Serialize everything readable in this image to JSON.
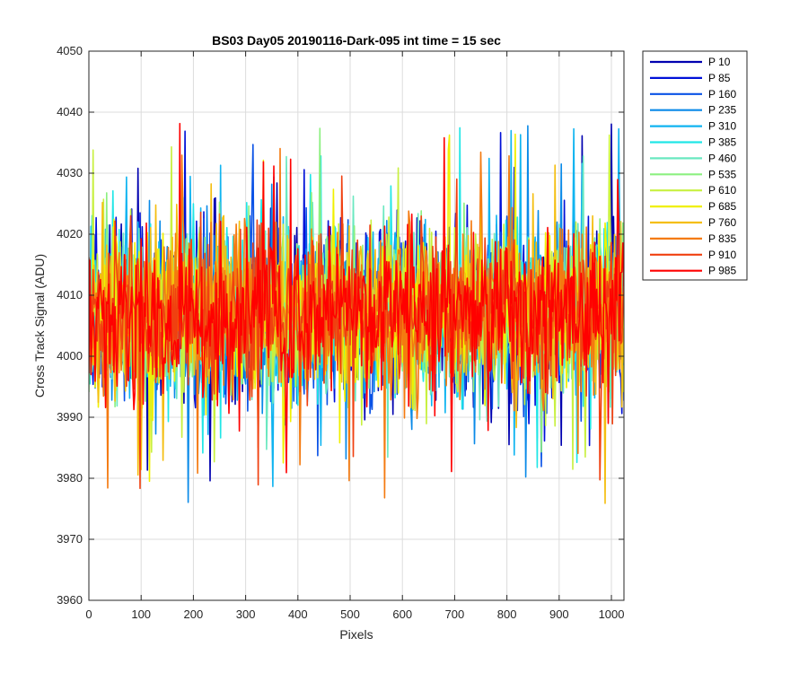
{
  "chart_data": {
    "type": "line",
    "title": "BS03 Day05 20190116-Dark-095 int time = 15 sec",
    "xlabel": "Pixels",
    "ylabel": "Cross Track Signal (ADU)",
    "xlim": [
      0,
      1024
    ],
    "ylim": [
      3960,
      4050
    ],
    "xticks": [
      0,
      100,
      200,
      300,
      400,
      500,
      600,
      700,
      800,
      900,
      1000
    ],
    "yticks": [
      3960,
      3970,
      3980,
      3990,
      4000,
      4010,
      4020,
      4030,
      4040,
      4050
    ],
    "grid": true,
    "legend_position": "outside-top-right",
    "series": [
      {
        "name": "P 10",
        "color": "#0000b0",
        "mean": 4007,
        "noise": 8
      },
      {
        "name": "P 85",
        "color": "#0010d8",
        "mean": 4007,
        "noise": 8
      },
      {
        "name": "P 160",
        "color": "#0a52e6",
        "mean": 4007,
        "noise": 8
      },
      {
        "name": "P 235",
        "color": "#0a8ae8",
        "mean": 4007,
        "noise": 8
      },
      {
        "name": "P 310",
        "color": "#10b4f0",
        "mean": 4007,
        "noise": 8
      },
      {
        "name": "P 385",
        "color": "#20e6e6",
        "mean": 4007,
        "noise": 8
      },
      {
        "name": "P 460",
        "color": "#6ae8c0",
        "mean": 4007,
        "noise": 8
      },
      {
        "name": "P 535",
        "color": "#8cf080",
        "mean": 4007,
        "noise": 8
      },
      {
        "name": "P 610",
        "color": "#c8f040",
        "mean": 4007,
        "noise": 8
      },
      {
        "name": "P 685",
        "color": "#f0f000",
        "mean": 4007,
        "noise": 8
      },
      {
        "name": "P 760",
        "color": "#f4be10",
        "mean": 4007,
        "noise": 8
      },
      {
        "name": "P 835",
        "color": "#f47a10",
        "mean": 4007,
        "noise": 8
      },
      {
        "name": "P 910",
        "color": "#f04010",
        "mean": 4007,
        "noise": 8
      },
      {
        "name": "P 985",
        "color": "#ff0000",
        "mean": 4007,
        "noise": 8
      }
    ]
  }
}
